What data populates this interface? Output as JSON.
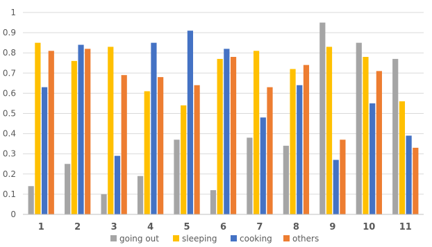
{
  "chart_data": {
    "type": "bar",
    "title": "",
    "xlabel": "",
    "ylabel": "",
    "ylim": [
      0,
      1
    ],
    "ytick_step": 0.1,
    "grid": "horizontal",
    "legend_position": "bottom",
    "categories": [
      "1",
      "2",
      "3",
      "4",
      "5",
      "6",
      "7",
      "8",
      "9",
      "10",
      "11"
    ],
    "series": [
      {
        "name": "going out",
        "color": "#a5a5a5",
        "values": [
          0.14,
          0.25,
          0.1,
          0.19,
          0.37,
          0.12,
          0.38,
          0.34,
          0.95,
          0.85,
          0.77
        ]
      },
      {
        "name": "sleeping",
        "color": "#ffc000",
        "values": [
          0.85,
          0.76,
          0.83,
          0.61,
          0.54,
          0.77,
          0.81,
          0.72,
          0.83,
          0.78,
          0.56
        ]
      },
      {
        "name": "cooking",
        "color": "#4472c4",
        "values": [
          0.63,
          0.84,
          0.29,
          0.85,
          0.91,
          0.82,
          0.48,
          0.64,
          0.27,
          0.55,
          0.39
        ]
      },
      {
        "name": "others",
        "color": "#ed7d31",
        "values": [
          0.81,
          0.82,
          0.69,
          0.68,
          0.64,
          0.78,
          0.63,
          0.74,
          0.37,
          0.71,
          0.33
        ]
      }
    ]
  }
}
